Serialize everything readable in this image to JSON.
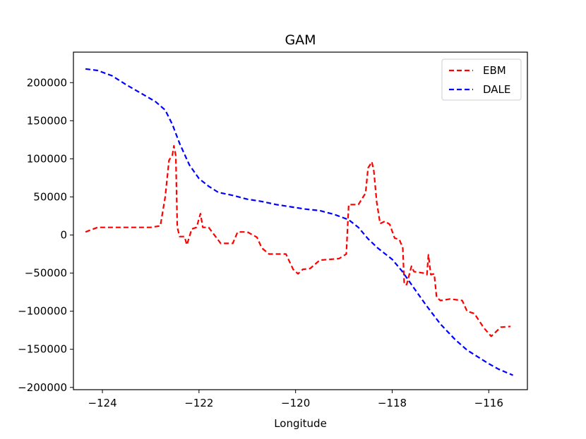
{
  "chart_data": {
    "type": "line",
    "title": "GAM",
    "xlabel": "Longitude",
    "ylabel": "",
    "xlim": [
      -124.6,
      -115.2
    ],
    "ylim": [
      -203000,
      240000
    ],
    "xticks": [
      -124,
      -122,
      -120,
      -118,
      -116
    ],
    "xtick_labels": [
      "−124",
      "−122",
      "−120",
      "−118",
      "−116"
    ],
    "yticks": [
      -200000,
      -150000,
      -100000,
      -50000,
      0,
      50000,
      100000,
      150000,
      200000
    ],
    "ytick_labels": [
      "−200000",
      "−150000",
      "−100000",
      "−50000",
      "0",
      "50000",
      "100000",
      "150000",
      "200000"
    ],
    "grid": false,
    "legend_position": "top-right",
    "series": [
      {
        "name": "EBM",
        "color": "#ff0000",
        "style": "dashed",
        "points": [
          [
            -124.35,
            4000
          ],
          [
            -124.1,
            10000
          ],
          [
            -123.5,
            10000
          ],
          [
            -123.0,
            10000
          ],
          [
            -122.8,
            12000
          ],
          [
            -122.7,
            50000
          ],
          [
            -122.62,
            98000
          ],
          [
            -122.55,
            105000
          ],
          [
            -122.52,
            117000
          ],
          [
            -122.48,
            104000
          ],
          [
            -122.45,
            10000
          ],
          [
            -122.4,
            -2000
          ],
          [
            -122.3,
            -2000
          ],
          [
            -122.25,
            -13000
          ],
          [
            -122.15,
            8000
          ],
          [
            -122.05,
            10000
          ],
          [
            -121.97,
            28000
          ],
          [
            -121.92,
            10000
          ],
          [
            -121.8,
            10000
          ],
          [
            -121.55,
            -11000
          ],
          [
            -121.3,
            -11000
          ],
          [
            -121.2,
            4000
          ],
          [
            -121.0,
            4000
          ],
          [
            -120.8,
            -3000
          ],
          [
            -120.7,
            -17000
          ],
          [
            -120.55,
            -25000
          ],
          [
            -120.2,
            -25000
          ],
          [
            -120.05,
            -45000
          ],
          [
            -119.95,
            -51000
          ],
          [
            -119.85,
            -45000
          ],
          [
            -119.7,
            -44000
          ],
          [
            -119.5,
            -33000
          ],
          [
            -119.1,
            -31000
          ],
          [
            -118.95,
            -25000
          ],
          [
            -118.9,
            40000
          ],
          [
            -118.7,
            40000
          ],
          [
            -118.55,
            55000
          ],
          [
            -118.5,
            88000
          ],
          [
            -118.42,
            96000
          ],
          [
            -118.38,
            84000
          ],
          [
            -118.32,
            43000
          ],
          [
            -118.25,
            15000
          ],
          [
            -118.15,
            18000
          ],
          [
            -118.05,
            14000
          ],
          [
            -117.95,
            -4000
          ],
          [
            -117.85,
            -6000
          ],
          [
            -117.78,
            -17000
          ],
          [
            -117.75,
            -65000
          ],
          [
            -117.7,
            -65000
          ],
          [
            -117.6,
            -41000
          ],
          [
            -117.55,
            -48000
          ],
          [
            -117.35,
            -50000
          ],
          [
            -117.28,
            -52000
          ],
          [
            -117.25,
            -26000
          ],
          [
            -117.2,
            -52000
          ],
          [
            -117.13,
            -51000
          ],
          [
            -117.08,
            -82000
          ],
          [
            -117.0,
            -86000
          ],
          [
            -116.8,
            -84000
          ],
          [
            -116.55,
            -86000
          ],
          [
            -116.45,
            -100000
          ],
          [
            -116.3,
            -103000
          ],
          [
            -116.1,
            -122000
          ],
          [
            -115.95,
            -133000
          ],
          [
            -115.75,
            -121000
          ],
          [
            -115.55,
            -120000
          ]
        ]
      },
      {
        "name": "DALE",
        "color": "#0000ff",
        "style": "dashed",
        "points": [
          [
            -124.35,
            218000
          ],
          [
            -124.1,
            216000
          ],
          [
            -123.8,
            209000
          ],
          [
            -123.5,
            197000
          ],
          [
            -123.2,
            186000
          ],
          [
            -122.9,
            175000
          ],
          [
            -122.7,
            164000
          ],
          [
            -122.55,
            145000
          ],
          [
            -122.4,
            120000
          ],
          [
            -122.2,
            92000
          ],
          [
            -122.0,
            74000
          ],
          [
            -121.8,
            64000
          ],
          [
            -121.6,
            56000
          ],
          [
            -121.3,
            52000
          ],
          [
            -121.0,
            47000
          ],
          [
            -120.7,
            44000
          ],
          [
            -120.4,
            40000
          ],
          [
            -120.1,
            37000
          ],
          [
            -119.8,
            34000
          ],
          [
            -119.5,
            32000
          ],
          [
            -119.2,
            27000
          ],
          [
            -118.9,
            20000
          ],
          [
            -118.7,
            10000
          ],
          [
            -118.5,
            -5000
          ],
          [
            -118.3,
            -17000
          ],
          [
            -118.0,
            -32000
          ],
          [
            -117.8,
            -47000
          ],
          [
            -117.6,
            -65000
          ],
          [
            -117.3,
            -92000
          ],
          [
            -117.0,
            -117000
          ],
          [
            -116.7,
            -137000
          ],
          [
            -116.45,
            -151000
          ],
          [
            -116.2,
            -161000
          ],
          [
            -116.0,
            -169000
          ],
          [
            -115.8,
            -176000
          ],
          [
            -115.5,
            -184000
          ]
        ]
      }
    ]
  }
}
